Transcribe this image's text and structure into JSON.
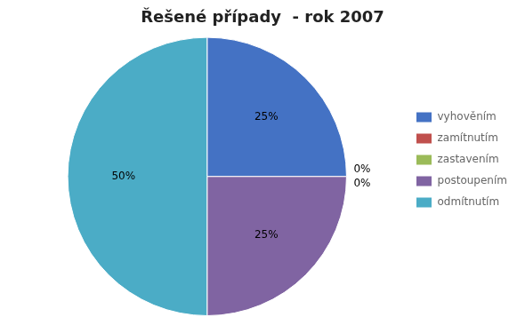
{
  "chart_data": {
    "type": "pie",
    "title": "Řešené případy  - rok 2007",
    "categories": [
      "vyhověním",
      "zamítnutím",
      "zastavením",
      "postoupením",
      "odmítnutím"
    ],
    "values": [
      25,
      0,
      0,
      25,
      50
    ],
    "value_labels": [
      "25%",
      "0%",
      "0%",
      "25%",
      "50%"
    ],
    "colors": [
      "#4472C4",
      "#C0504D",
      "#9BBB59",
      "#8064A2",
      "#4BACC6"
    ],
    "data_labels": true,
    "legend": "right"
  }
}
